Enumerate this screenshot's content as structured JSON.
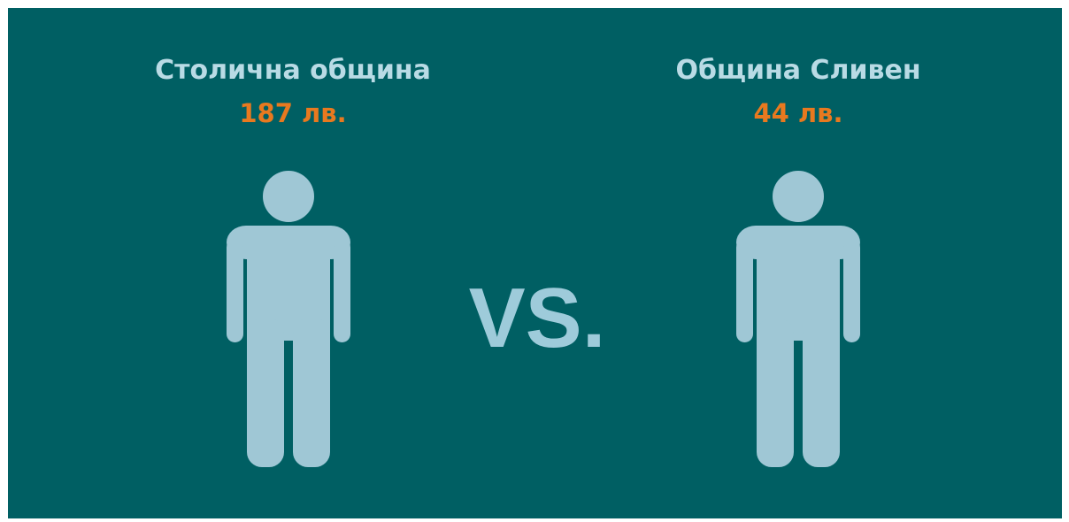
{
  "left": {
    "title": "Столична община",
    "value": "187 лв."
  },
  "right": {
    "title": "Община Сливен",
    "value": "44 лв."
  },
  "versus": "VS."
}
